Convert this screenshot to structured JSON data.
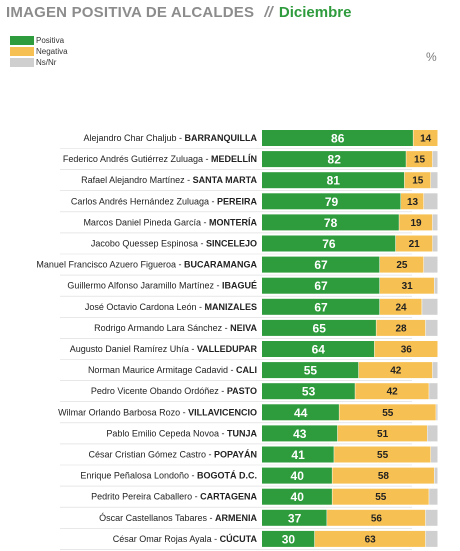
{
  "header": {
    "title": "IMAGEN POSITIVA DE ALCALDES",
    "separator": "//",
    "subtitle": "Diciembre"
  },
  "unit": "%",
  "colors": {
    "positiva": "#2e9b3c",
    "negativa": "#f7c052",
    "nsnr": "#cfcfcf",
    "row_line": "#d9d9d9"
  },
  "chart_data": {
    "type": "bar",
    "orientation": "horizontal",
    "stacked": true,
    "xlim": [
      0,
      100
    ],
    "legend": {
      "position": "top-left",
      "entries": [
        "Positiva",
        "Negativa",
        "Ns/Nr"
      ]
    },
    "categories": [
      {
        "name": "Alejandro Char Chaljub - ",
        "city": "BARRANQUILLA"
      },
      {
        "name": "Federico Andrés Gutiérrez Zuluaga - ",
        "city": "MEDELLÍN"
      },
      {
        "name": "Rafael Alejandro Martínez - ",
        "city": "SANTA MARTA"
      },
      {
        "name": "Carlos Andrés Hernández Zuluaga - ",
        "city": "PEREIRA"
      },
      {
        "name": "Marcos Daniel Pineda García - ",
        "city": "MONTERÍA"
      },
      {
        "name": "Jacobo Quessep Espinosa - ",
        "city": "SINCELEJO"
      },
      {
        "name": "Manuel Francisco Azuero Figueroa - ",
        "city": "BUCARAMANGA"
      },
      {
        "name": "Guillermo Alfonso Jaramillo Martínez - ",
        "city": "IBAGUÉ"
      },
      {
        "name": "José Octavio Cardona León - ",
        "city": "MANIZALES"
      },
      {
        "name": "Rodrigo Armando Lara Sánchez - ",
        "city": "NEIVA"
      },
      {
        "name": "Augusto Daniel Ramírez Uhía - ",
        "city": "VALLEDUPAR"
      },
      {
        "name": "Norman Maurice Armitage Cadavid - ",
        "city": "CALI"
      },
      {
        "name": "Pedro Vicente Obando Ordóñez - ",
        "city": "PASTO"
      },
      {
        "name": "Wilmar Orlando Barbosa Rozo - ",
        "city": "VILLAVICENCIO"
      },
      {
        "name": "Pablo Emilio Cepeda Novoa - ",
        "city": "TUNJA"
      },
      {
        "name": "César Cristian Gómez Castro - ",
        "city": "POPAYÁN"
      },
      {
        "name": "Enrique Peñalosa Londoño - ",
        "city": "BOGOTÁ D.C."
      },
      {
        "name": "Pedrito Pereira Caballero - ",
        "city": "CARTAGENA"
      },
      {
        "name": "Óscar Castellanos Tabares - ",
        "city": "ARMENIA"
      },
      {
        "name": "César Omar Rojas Ayala - ",
        "city": "CÚCUTA"
      }
    ],
    "series": [
      {
        "name": "Positiva",
        "values": [
          86,
          82,
          81,
          79,
          78,
          76,
          67,
          67,
          67,
          65,
          64,
          55,
          53,
          44,
          43,
          41,
          40,
          40,
          37,
          30
        ]
      },
      {
        "name": "Negativa",
        "values": [
          14,
          15,
          15,
          13,
          19,
          21,
          25,
          31,
          24,
          28,
          36,
          42,
          42,
          55,
          51,
          55,
          58,
          55,
          56,
          63
        ]
      },
      {
        "name": "Ns/Nr",
        "values": [
          0,
          3,
          4,
          8,
          3,
          3,
          8,
          2,
          9,
          7,
          0,
          3,
          5,
          1,
          6,
          4,
          2,
          5,
          7,
          7
        ]
      }
    ]
  }
}
